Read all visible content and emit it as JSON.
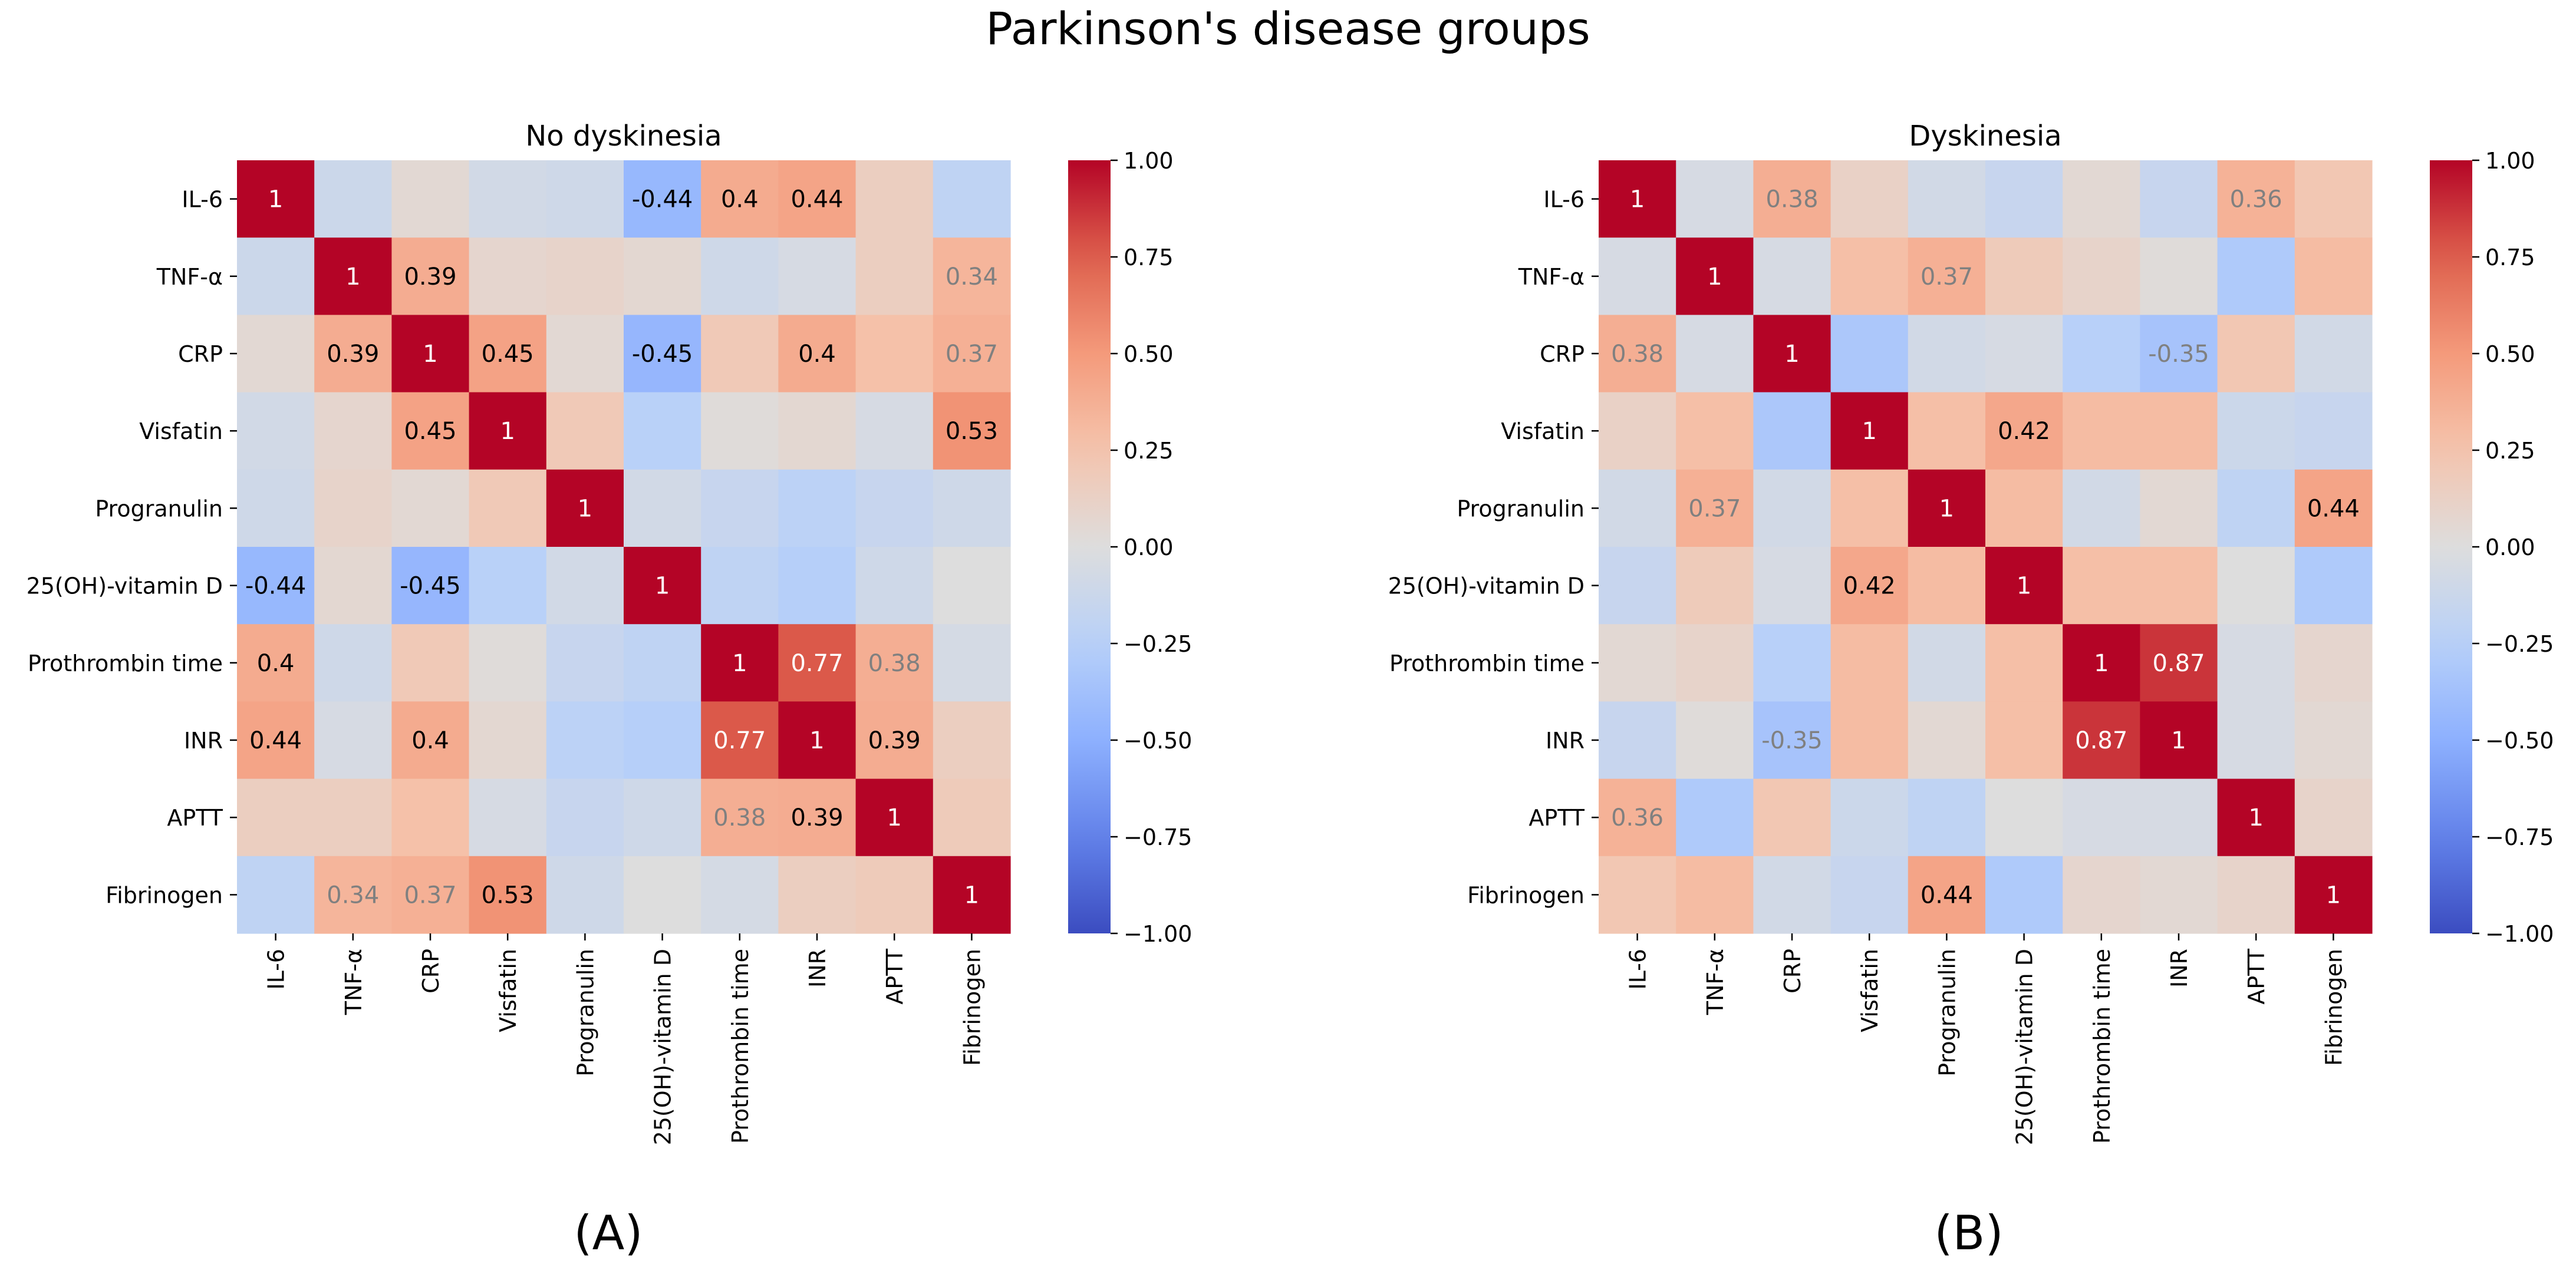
{
  "figure": {
    "suptitle": "Parkinson's disease groups",
    "panel_labels": [
      "(A)",
      "(B)"
    ]
  },
  "chart_data": [
    {
      "type": "heatmap",
      "panel": "(A)",
      "title": "No dyskinesia",
      "colormap": "coolwarm",
      "vmin": -1.0,
      "vmax": 1.0,
      "colorbar_ticks": [
        "1.00",
        "0.75",
        "0.50",
        "0.25",
        "0.00",
        "−0.25",
        "−0.50",
        "−0.75",
        "−1.00"
      ],
      "colorbar_tick_values": [
        1.0,
        0.75,
        0.5,
        0.25,
        0.0,
        -0.25,
        -0.5,
        -0.75,
        -1.0
      ],
      "rows": [
        "IL-6",
        "TNF-α",
        "CRP",
        "Visfatin",
        "Progranulin",
        "25(OH)-vitamin D",
        "Prothrombin time",
        "INR",
        "APTT",
        "Fibrinogen"
      ],
      "cols": [
        "IL-6",
        "TNF-α",
        "CRP",
        "Visfatin",
        "Progranulin",
        "25(OH)-vitamin D",
        "Prothrombin time",
        "INR",
        "APTT",
        "Fibrinogen"
      ],
      "matrix": [
        [
          1,
          -0.12,
          0.05,
          -0.08,
          -0.1,
          -0.44,
          0.4,
          0.44,
          0.15,
          -0.2
        ],
        [
          -0.12,
          1,
          0.39,
          0.08,
          0.1,
          0.06,
          -0.1,
          -0.05,
          0.15,
          0.34
        ],
        [
          0.05,
          0.39,
          1,
          0.45,
          0.05,
          -0.45,
          0.2,
          0.4,
          0.27,
          0.37
        ],
        [
          -0.08,
          0.08,
          0.45,
          1,
          0.2,
          -0.24,
          0.02,
          0.06,
          -0.05,
          0.53
        ],
        [
          -0.1,
          0.1,
          0.05,
          0.2,
          1,
          -0.08,
          -0.15,
          -0.22,
          -0.15,
          -0.1
        ],
        [
          -0.44,
          0.06,
          -0.45,
          -0.24,
          -0.08,
          1,
          -0.2,
          -0.26,
          -0.1,
          0.0
        ],
        [
          0.4,
          -0.1,
          0.2,
          0.02,
          -0.15,
          -0.2,
          1,
          0.77,
          0.38,
          -0.06
        ],
        [
          0.44,
          -0.05,
          0.4,
          0.06,
          -0.22,
          -0.26,
          0.77,
          1,
          0.39,
          0.15
        ],
        [
          0.15,
          0.15,
          0.27,
          -0.05,
          -0.15,
          -0.1,
          0.38,
          0.39,
          1,
          0.18
        ],
        [
          -0.2,
          0.34,
          0.37,
          0.53,
          -0.1,
          0.0,
          -0.06,
          0.15,
          0.18,
          1
        ]
      ],
      "annotations": [
        [
          0,
          0,
          "1",
          "#ffffff"
        ],
        [
          0,
          5,
          "-0.44",
          "#000000"
        ],
        [
          0,
          6,
          "0.4",
          "#000000"
        ],
        [
          0,
          7,
          "0.44",
          "#000000"
        ],
        [
          1,
          1,
          "1",
          "#ffffff"
        ],
        [
          1,
          2,
          "0.39",
          "#000000"
        ],
        [
          1,
          9,
          "0.34",
          "#808080"
        ],
        [
          2,
          1,
          "0.39",
          "#000000"
        ],
        [
          2,
          2,
          "1",
          "#ffffff"
        ],
        [
          2,
          3,
          "0.45",
          "#000000"
        ],
        [
          2,
          5,
          "-0.45",
          "#000000"
        ],
        [
          2,
          7,
          "0.4",
          "#000000"
        ],
        [
          2,
          9,
          "0.37",
          "#808080"
        ],
        [
          3,
          2,
          "0.45",
          "#000000"
        ],
        [
          3,
          3,
          "1",
          "#ffffff"
        ],
        [
          3,
          9,
          "0.53",
          "#000000"
        ],
        [
          4,
          4,
          "1",
          "#ffffff"
        ],
        [
          5,
          0,
          "-0.44",
          "#000000"
        ],
        [
          5,
          2,
          "-0.45",
          "#000000"
        ],
        [
          5,
          5,
          "1",
          "#ffffff"
        ],
        [
          6,
          0,
          "0.4",
          "#000000"
        ],
        [
          6,
          6,
          "1",
          "#ffffff"
        ],
        [
          6,
          7,
          "0.77",
          "#ffffff"
        ],
        [
          6,
          8,
          "0.38",
          "#808080"
        ],
        [
          7,
          0,
          "0.44",
          "#000000"
        ],
        [
          7,
          2,
          "0.4",
          "#000000"
        ],
        [
          7,
          6,
          "0.77",
          "#ffffff"
        ],
        [
          7,
          7,
          "1",
          "#ffffff"
        ],
        [
          7,
          8,
          "0.39",
          "#000000"
        ],
        [
          8,
          6,
          "0.38",
          "#808080"
        ],
        [
          8,
          7,
          "0.39",
          "#000000"
        ],
        [
          8,
          8,
          "1",
          "#ffffff"
        ],
        [
          9,
          1,
          "0.34",
          "#808080"
        ],
        [
          9,
          2,
          "0.37",
          "#808080"
        ],
        [
          9,
          3,
          "0.53",
          "#000000"
        ],
        [
          9,
          9,
          "1",
          "#ffffff"
        ]
      ]
    },
    {
      "type": "heatmap",
      "panel": "(B)",
      "title": "Dyskinesia",
      "colormap": "coolwarm",
      "vmin": -1.0,
      "vmax": 1.0,
      "colorbar_ticks": [
        "1.00",
        "0.75",
        "0.50",
        "0.25",
        "0.00",
        "−0.25",
        "−0.50",
        "−0.75",
        "−1.00"
      ],
      "colorbar_tick_values": [
        1.0,
        0.75,
        0.5,
        0.25,
        0.0,
        -0.25,
        -0.5,
        -0.75,
        -1.0
      ],
      "rows": [
        "IL-6",
        "TNF-α",
        "CRP",
        "Visfatin",
        "Progranulin",
        "25(OH)-vitamin D",
        "Prothrombin time",
        "INR",
        "APTT",
        "Fibrinogen"
      ],
      "cols": [
        "IL-6",
        "TNF-α",
        "CRP",
        "Visfatin",
        "Progranulin",
        "25(OH)-vitamin D",
        "Prothrombin time",
        "INR",
        "APTT",
        "Fibrinogen"
      ],
      "matrix": [
        [
          1,
          -0.05,
          0.38,
          0.12,
          -0.08,
          -0.15,
          0.05,
          -0.15,
          0.36,
          0.22
        ],
        [
          -0.05,
          1,
          -0.05,
          0.28,
          0.37,
          0.18,
          0.1,
          0.02,
          -0.3,
          0.3
        ],
        [
          0.38,
          -0.05,
          1,
          -0.32,
          -0.08,
          -0.05,
          -0.25,
          -0.35,
          0.22,
          -0.08
        ],
        [
          0.12,
          0.28,
          -0.32,
          1,
          0.28,
          0.42,
          0.3,
          0.3,
          -0.12,
          -0.15
        ],
        [
          -0.08,
          0.37,
          -0.08,
          0.28,
          1,
          0.3,
          -0.08,
          0.05,
          -0.2,
          0.44
        ],
        [
          -0.15,
          0.18,
          -0.05,
          0.42,
          0.3,
          1,
          0.28,
          0.28,
          0.0,
          -0.3
        ],
        [
          0.05,
          0.1,
          -0.25,
          0.3,
          -0.08,
          0.28,
          1,
          0.87,
          -0.05,
          0.08
        ],
        [
          -0.15,
          0.02,
          -0.35,
          0.3,
          0.05,
          0.28,
          0.87,
          1,
          -0.05,
          0.05
        ],
        [
          0.36,
          -0.3,
          0.22,
          -0.12,
          -0.2,
          0.0,
          -0.05,
          -0.05,
          1,
          0.1
        ],
        [
          0.22,
          0.3,
          -0.08,
          -0.15,
          0.44,
          -0.3,
          0.08,
          0.05,
          0.1,
          1
        ]
      ],
      "annotations": [
        [
          0,
          0,
          "1",
          "#ffffff"
        ],
        [
          0,
          2,
          "0.38",
          "#808080"
        ],
        [
          0,
          8,
          "0.36",
          "#808080"
        ],
        [
          1,
          1,
          "1",
          "#ffffff"
        ],
        [
          1,
          4,
          "0.37",
          "#808080"
        ],
        [
          2,
          0,
          "0.38",
          "#808080"
        ],
        [
          2,
          2,
          "1",
          "#ffffff"
        ],
        [
          2,
          7,
          "-0.35",
          "#808080"
        ],
        [
          3,
          3,
          "1",
          "#ffffff"
        ],
        [
          3,
          5,
          "0.42",
          "#000000"
        ],
        [
          4,
          1,
          "0.37",
          "#808080"
        ],
        [
          4,
          4,
          "1",
          "#ffffff"
        ],
        [
          4,
          9,
          "0.44",
          "#000000"
        ],
        [
          5,
          3,
          "0.42",
          "#000000"
        ],
        [
          5,
          5,
          "1",
          "#ffffff"
        ],
        [
          6,
          6,
          "1",
          "#ffffff"
        ],
        [
          6,
          7,
          "0.87",
          "#ffffff"
        ],
        [
          7,
          2,
          "-0.35",
          "#808080"
        ],
        [
          7,
          6,
          "0.87",
          "#ffffff"
        ],
        [
          7,
          7,
          "1",
          "#ffffff"
        ],
        [
          8,
          0,
          "0.36",
          "#808080"
        ],
        [
          8,
          8,
          "1",
          "#ffffff"
        ],
        [
          9,
          4,
          "0.44",
          "#000000"
        ],
        [
          9,
          9,
          "1",
          "#ffffff"
        ]
      ]
    }
  ]
}
